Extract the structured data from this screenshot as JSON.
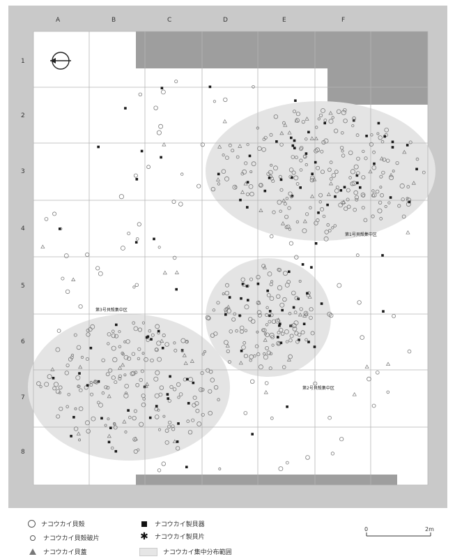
{
  "map": {
    "columns": [
      "A",
      "B",
      "C",
      "D",
      "E",
      "F"
    ],
    "rows": [
      "1",
      "2",
      "3",
      "4",
      "5",
      "6",
      "7",
      "8"
    ],
    "north_arrow": "north-arrow-icon",
    "zones": [
      {
        "label": "第1号貝殻集中区"
      },
      {
        "label": "第2号貝殻集中区"
      },
      {
        "label": "第3号貝殻集中区"
      }
    ],
    "colors": {
      "frame": "#c9c9c9",
      "excluded": "#9e9e9e",
      "concentration": "#e4e4e4",
      "grid": "#b5b5b5"
    }
  },
  "legend": {
    "items": [
      {
        "symbol": "large-circle-icon",
        "label": "ナコウカイ貝殻"
      },
      {
        "symbol": "small-circle-icon",
        "label": "ナコウカイ貝殻破片"
      },
      {
        "symbol": "triangle-icon",
        "label": "ナコウカイ貝蓋"
      },
      {
        "symbol": "black-square-icon",
        "label": "ナコウカイ製貝器"
      },
      {
        "symbol": "asterisk-icon",
        "label": "ナコウカイ製貝片"
      },
      {
        "symbol": "shaded-area-icon",
        "label": "ナコウカイ集中分布範囲"
      }
    ],
    "scale": {
      "start": "0",
      "end": "2m"
    }
  }
}
